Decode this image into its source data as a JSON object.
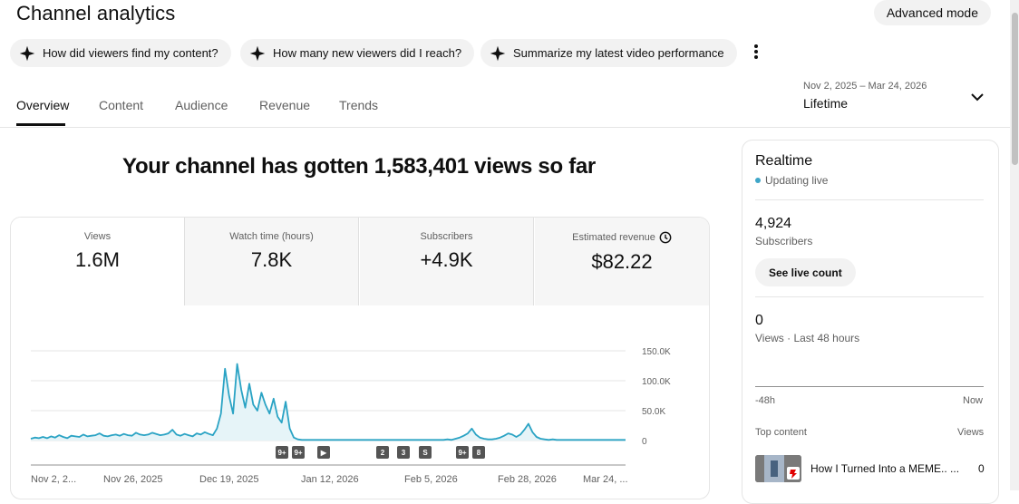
{
  "page": {
    "title": "Channel analytics",
    "advanced_mode_label": "Advanced mode"
  },
  "chips": [
    {
      "label": "How did viewers find my content?"
    },
    {
      "label": "How many new viewers did I reach?"
    },
    {
      "label": "Summarize my latest video performance"
    }
  ],
  "tabs": [
    {
      "label": "Overview",
      "active": true
    },
    {
      "label": "Content"
    },
    {
      "label": "Audience"
    },
    {
      "label": "Revenue"
    },
    {
      "label": "Trends"
    }
  ],
  "date_picker": {
    "range": "Nov 2, 2025 – Mar 24, 2026",
    "preset": "Lifetime"
  },
  "headline": "Your channel has gotten 1,583,401 views so far",
  "metrics": [
    {
      "label": "Views",
      "value": "1.6M"
    },
    {
      "label": "Watch time (hours)",
      "value": "7.8K"
    },
    {
      "label": "Subscribers",
      "value": "+4.9K"
    },
    {
      "label": "Estimated revenue",
      "value": "$82.22"
    }
  ],
  "chart_data": {
    "type": "area",
    "series": [
      {
        "values": [
          3,
          5,
          4,
          6,
          4,
          7,
          5,
          9,
          6,
          4,
          8,
          7,
          6,
          10,
          7,
          8,
          9,
          12,
          8,
          7,
          9,
          10,
          8,
          11,
          9,
          8,
          13,
          10,
          9,
          10,
          13,
          11,
          9,
          10,
          12,
          18,
          10,
          8,
          11,
          9,
          7,
          12,
          10,
          14,
          11,
          9,
          20,
          45,
          120,
          75,
          45,
          128,
          85,
          55,
          95,
          60,
          50,
          80,
          60,
          45,
          70,
          40,
          30,
          65,
          20,
          5,
          2,
          1,
          1,
          1,
          1,
          1,
          1,
          1,
          1,
          1,
          1,
          1,
          1,
          1,
          1,
          1,
          1,
          1,
          1,
          1,
          1,
          1,
          1,
          1,
          1,
          1,
          1,
          1,
          1,
          1,
          1,
          1,
          1,
          1,
          1,
          1,
          1,
          2,
          1,
          3,
          5,
          8,
          12,
          20,
          10,
          5,
          3,
          2,
          2,
          3,
          5,
          8,
          12,
          10,
          6,
          10,
          18,
          28,
          14,
          6,
          3,
          2,
          1,
          2,
          1,
          1,
          1,
          1,
          1,
          1,
          1,
          1,
          1,
          1,
          1,
          1,
          1,
          1,
          1,
          1,
          1,
          1
        ]
      }
    ],
    "x_tick_labels": [
      "Nov 2, 2...",
      "Nov 26, 2025",
      "Dec 19, 2025",
      "Jan 12, 2026",
      "Feb 5, 2026",
      "Feb 28, 2026",
      "Mar 24, ..."
    ],
    "y_tick_labels": [
      "150.0K",
      "100.0K",
      "50.0K",
      "0"
    ],
    "y_ticks": [
      150,
      100,
      50,
      0
    ],
    "ylim": [
      0,
      150
    ],
    "grid": true,
    "markers": [
      "9+",
      "9+",
      "▶",
      "2",
      "3",
      "S",
      "9+",
      "8"
    ]
  },
  "realtime": {
    "title": "Realtime",
    "status": "Updating live",
    "subscribers_count": "4,924",
    "subscribers_label": "Subscribers",
    "see_live_count_label": "See live count",
    "views_count": "0",
    "views_label": "Views · Last 48 hours",
    "axis_start": "-48h",
    "axis_end": "Now",
    "top_content_label": "Top content",
    "views_col_label": "Views",
    "top_content": [
      {
        "title": "How I Turned Into a MEME.. ...",
        "views": "0"
      }
    ]
  },
  "colors": {
    "accent": "#3ea6c8",
    "chart_line": "#2aa3c4",
    "chart_fill": "#e6f4f8"
  },
  "icons": {
    "chip_icon": "sparkle-icon",
    "kebab": "more-vert-icon",
    "date_chevron": "chevron-down-icon",
    "revenue": "clock-icon"
  }
}
